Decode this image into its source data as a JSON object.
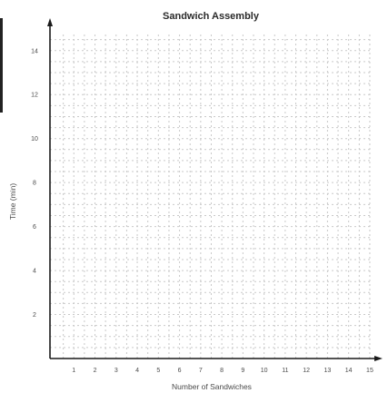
{
  "chart_data": {
    "type": "line",
    "title": "Sandwich Assembly",
    "xlabel": "Number of Sandwiches",
    "ylabel": "Time (min)",
    "xlim": [
      0,
      15
    ],
    "ylim": [
      0,
      15
    ],
    "x_ticks": [
      "1",
      "2",
      "3",
      "4",
      "5",
      "6",
      "7",
      "8",
      "9",
      "10",
      "11",
      "12",
      "13",
      "14",
      "15"
    ],
    "y_ticks": [
      "2",
      "4",
      "6",
      "8",
      "10",
      "12",
      "14"
    ],
    "grid": true,
    "series": []
  }
}
